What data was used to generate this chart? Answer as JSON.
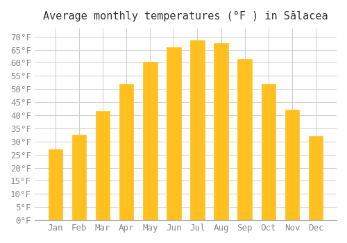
{
  "title": "Average monthly temperatures (°F ) in Sălacea",
  "months": [
    "Jan",
    "Feb",
    "Mar",
    "Apr",
    "May",
    "Jun",
    "Jul",
    "Aug",
    "Sep",
    "Oct",
    "Nov",
    "Dec"
  ],
  "values": [
    27,
    32.5,
    41.5,
    52,
    60.5,
    66,
    68.5,
    67.5,
    61.5,
    52,
    42,
    32
  ],
  "bar_color": "#FFC020",
  "bar_edge_color": "#FFC020",
  "background_color": "#ffffff",
  "grid_color": "#cccccc",
  "text_color": "#888888",
  "ylim": [
    0,
    73
  ],
  "yticks": [
    0,
    5,
    10,
    15,
    20,
    25,
    30,
    35,
    40,
    45,
    50,
    55,
    60,
    65,
    70
  ],
  "title_fontsize": 11,
  "tick_fontsize": 9
}
